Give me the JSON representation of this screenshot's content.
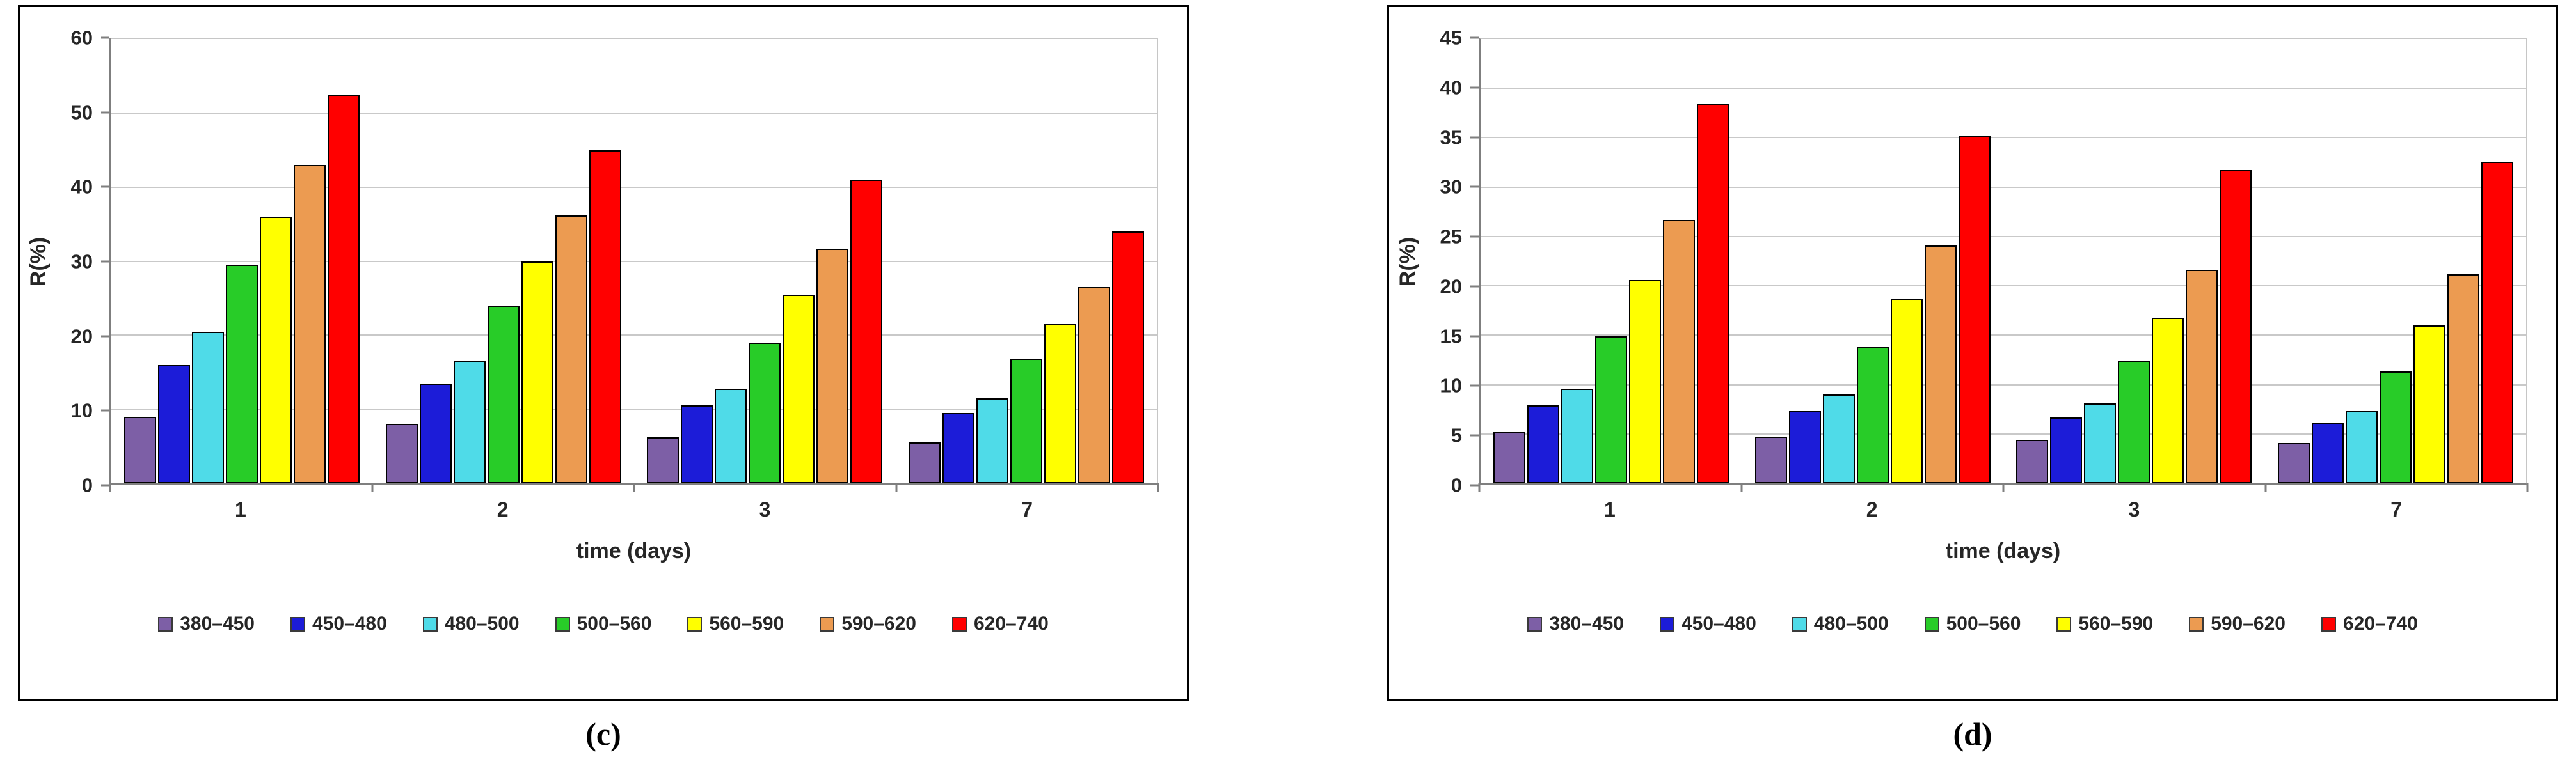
{
  "chart_data": [
    {
      "type": "bar",
      "panel_label": "(c)",
      "title": "",
      "xlabel": "time (days)",
      "ylabel": "R(%)",
      "ylim": [
        0,
        60
      ],
      "ytick_step": 10,
      "grid": true,
      "legend_position": "bottom",
      "categories": [
        "1",
        "2",
        "3",
        "7"
      ],
      "series": [
        {
          "name": "380–450",
          "color": "#7D5FA6",
          "values": [
            9.0,
            8.0,
            6.2,
            5.5
          ]
        },
        {
          "name": "450–480",
          "color": "#1C1CD8",
          "values": [
            16.0,
            13.5,
            10.5,
            9.5
          ]
        },
        {
          "name": "480–500",
          "color": "#4FDBE8",
          "values": [
            20.5,
            16.5,
            12.8,
            11.5
          ]
        },
        {
          "name": "500–560",
          "color": "#28CC28",
          "values": [
            29.5,
            24.0,
            19.0,
            16.8
          ]
        },
        {
          "name": "560–590",
          "color": "#FFFF00",
          "values": [
            36.0,
            30.0,
            25.5,
            21.5
          ]
        },
        {
          "name": "590–620",
          "color": "#EC9B51",
          "values": [
            43.0,
            36.2,
            31.7,
            26.5
          ]
        },
        {
          "name": "620–740",
          "color": "#FF0000",
          "values": [
            52.5,
            45.0,
            41.0,
            34.0
          ]
        }
      ]
    },
    {
      "type": "bar",
      "panel_label": "(d)",
      "title": "",
      "xlabel": "time (days)",
      "ylabel": "R(%)",
      "ylim": [
        0,
        45
      ],
      "ytick_step": 5,
      "grid": true,
      "legend_position": "bottom",
      "categories": [
        "1",
        "2",
        "3",
        "7"
      ],
      "series": [
        {
          "name": "380–450",
          "color": "#7D5FA6",
          "values": [
            5.2,
            4.7,
            4.4,
            4.1
          ]
        },
        {
          "name": "450–480",
          "color": "#1C1CD8",
          "values": [
            7.9,
            7.3,
            6.7,
            6.1
          ]
        },
        {
          "name": "480–500",
          "color": "#4FDBE8",
          "values": [
            9.6,
            9.0,
            8.1,
            7.3
          ]
        },
        {
          "name": "500–560",
          "color": "#28CC28",
          "values": [
            14.9,
            13.8,
            12.4,
            11.3
          ]
        },
        {
          "name": "560–590",
          "color": "#FFFF00",
          "values": [
            20.6,
            18.7,
            16.8,
            16.0
          ]
        },
        {
          "name": "590–620",
          "color": "#EC9B51",
          "values": [
            26.7,
            24.1,
            21.6,
            21.2
          ]
        },
        {
          "name": "620–740",
          "color": "#FF0000",
          "values": [
            38.4,
            35.2,
            31.7,
            32.6
          ]
        }
      ]
    }
  ]
}
